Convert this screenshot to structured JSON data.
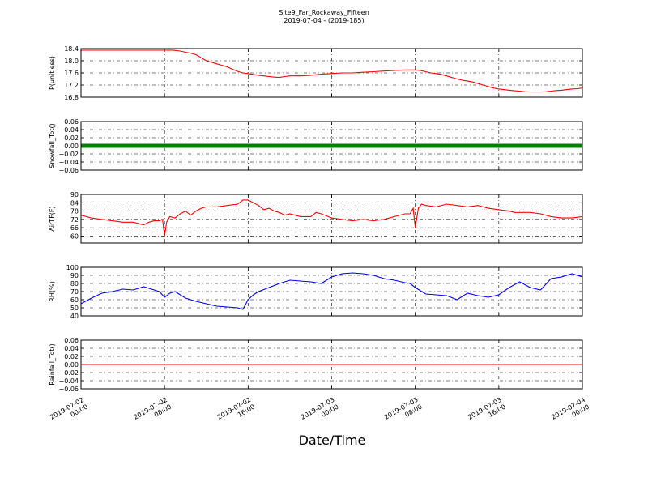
{
  "title": {
    "line1": "Site9_Far_Rockaway_Fifteen",
    "line2": "2019-07-04 - (2019-185)"
  },
  "xlabel": "Date/Time",
  "x_ticks": [
    {
      "line1": "2019-07-02",
      "line2": "00:00",
      "hour": 0
    },
    {
      "line1": "2019-07-02",
      "line2": "08:00",
      "hour": 8
    },
    {
      "line1": "2019-07-02",
      "line2": "16:00",
      "hour": 16
    },
    {
      "line1": "2019-07-03",
      "line2": "00:00",
      "hour": 24
    },
    {
      "line1": "2019-07-03",
      "line2": "08:00",
      "hour": 32
    },
    {
      "line1": "2019-07-03",
      "line2": "16:00",
      "hour": 40
    },
    {
      "line1": "2019-07-04",
      "line2": "00:00",
      "hour": 48
    }
  ],
  "colors": {
    "pressure": "#ff0000",
    "snowfall": "#008000",
    "airtemp": "#ff0000",
    "rh": "#0000ff",
    "rainfall": "#ff0000"
  },
  "chart_data": [
    {
      "type": "line",
      "ylabel": "P(unitless)",
      "ylim": [
        16.8,
        18.4
      ],
      "yticks": [
        "16.8",
        "17.2",
        "17.6",
        "18.0",
        "18.4"
      ],
      "grid": true,
      "x": [
        0,
        2.8,
        8.8,
        9.5,
        10.0,
        10.5,
        11.0,
        11.5,
        12.0,
        12.5,
        13.0,
        13.5,
        14.0,
        14.5,
        15.0,
        15.5,
        16.0,
        16.5,
        17.0,
        17.5,
        18.0,
        18.5,
        19.0,
        19.5,
        20.0,
        21.0,
        22.0,
        23.0,
        24.0,
        25.0,
        26.0,
        27.0,
        28.0,
        29.0,
        30.0,
        31.0,
        32.0,
        32.5,
        33.0,
        33.5,
        34.0,
        34.5,
        35.0,
        35.5,
        36.0,
        36.5,
        37.0,
        37.5,
        38.0,
        38.5,
        39.0,
        39.5,
        40.0,
        40.5,
        41.0,
        41.5,
        42.0,
        42.5,
        43.0,
        43.5,
        44.0,
        44.5,
        45.0,
        45.5,
        46.0,
        46.5,
        47.0,
        47.5,
        48.0
      ],
      "series": [
        {
          "values": [
            18.35,
            18.35,
            18.35,
            18.32,
            18.28,
            18.25,
            18.2,
            18.1,
            18.0,
            17.95,
            17.9,
            17.85,
            17.8,
            17.72,
            17.65,
            17.6,
            17.58,
            17.55,
            17.52,
            17.5,
            17.48,
            17.46,
            17.45,
            17.48,
            17.5,
            17.5,
            17.52,
            17.56,
            17.58,
            17.6,
            17.6,
            17.62,
            17.64,
            17.66,
            17.68,
            17.7,
            17.7,
            17.68,
            17.64,
            17.6,
            17.58,
            17.55,
            17.5,
            17.45,
            17.4,
            17.36,
            17.33,
            17.3,
            17.25,
            17.2,
            17.15,
            17.1,
            17.07,
            17.05,
            17.03,
            17.01,
            17.0,
            16.98,
            16.97,
            16.97,
            16.97,
            16.98,
            17.0,
            17.02,
            17.03,
            17.05,
            17.07,
            17.08,
            17.1
          ]
        }
      ]
    },
    {
      "type": "line",
      "ylabel": "Snowfall_Tot()",
      "ylim": [
        -0.06,
        0.06
      ],
      "yticks": [
        "−0.06",
        "−0.04",
        "−0.02",
        "0.00",
        "0.02",
        "0.04",
        "0.06"
      ],
      "grid": true,
      "x": [
        0,
        48
      ],
      "series": [
        {
          "values": [
            0.0,
            0.0
          ]
        }
      ]
    },
    {
      "type": "line",
      "ylabel": "AirTF(F)",
      "ylim": [
        55,
        90
      ],
      "yticks": [
        "60",
        "66",
        "72",
        "78",
        "84",
        "90"
      ],
      "grid": true,
      "x": [
        0,
        1,
        2,
        3,
        4,
        5,
        6,
        6.5,
        7,
        7.5,
        7.8,
        8.0,
        8.2,
        8.5,
        9,
        9.5,
        10,
        10.5,
        11,
        11.5,
        12,
        13,
        14,
        15,
        15.5,
        16,
        16.5,
        17,
        17.5,
        18,
        18.5,
        19,
        19.5,
        20,
        21,
        22,
        22.5,
        23,
        24,
        25,
        26,
        27,
        28,
        29,
        30,
        31,
        31.5,
        31.8,
        32,
        32.3,
        32.6,
        33,
        34,
        35,
        36,
        37,
        38,
        39,
        40,
        41,
        41.5,
        42,
        43,
        44,
        45,
        46,
        47,
        48
      ],
      "series": [
        {
          "values": [
            75,
            73,
            72,
            71,
            70,
            70,
            68,
            70,
            71,
            71,
            72,
            60,
            70,
            74,
            73,
            76,
            78,
            75,
            78,
            80,
            81,
            81,
            82,
            83,
            86,
            86,
            84,
            82,
            79,
            80,
            78,
            77,
            75,
            76,
            74,
            74,
            77,
            76,
            73,
            72,
            71,
            72,
            71,
            72,
            74,
            76,
            76,
            80,
            66,
            80,
            83,
            82,
            81,
            83,
            82,
            81,
            82,
            80,
            79,
            78,
            77,
            77,
            77,
            76,
            74,
            73,
            73,
            74
          ]
        }
      ]
    },
    {
      "type": "line",
      "ylabel": "RH(%)",
      "ylim": [
        40,
        100
      ],
      "yticks": [
        "40",
        "50",
        "60",
        "70",
        "80",
        "90",
        "100"
      ],
      "grid": true,
      "x": [
        0,
        1,
        2,
        3,
        4,
        5,
        6,
        7,
        7.5,
        8,
        8.5,
        9,
        10,
        11,
        12,
        13,
        14,
        15,
        15.5,
        16,
        16.5,
        17,
        18,
        19,
        20,
        21,
        22,
        23,
        24,
        25,
        26,
        27,
        28,
        29,
        30,
        31,
        31.5,
        32,
        33,
        34,
        35,
        36,
        37,
        38,
        39,
        40,
        41,
        42,
        43,
        44,
        45,
        46,
        47,
        48
      ],
      "series": [
        {
          "values": [
            55,
            62,
            68,
            70,
            73,
            72,
            76,
            72,
            70,
            63,
            68,
            70,
            62,
            58,
            55,
            52,
            51,
            50,
            48,
            60,
            66,
            70,
            75,
            80,
            84,
            83,
            82,
            80,
            88,
            92,
            93,
            92,
            90,
            86,
            84,
            81,
            80,
            75,
            67,
            66,
            65,
            60,
            68,
            65,
            63,
            66,
            75,
            82,
            75,
            72,
            86,
            88,
            92,
            88
          ]
        }
      ]
    },
    {
      "type": "line",
      "ylabel": "Rainfall_Tot()",
      "ylim": [
        -0.06,
        0.06
      ],
      "yticks": [
        "−0.06",
        "−0.04",
        "−0.02",
        "0.00",
        "0.02",
        "0.04",
        "0.06"
      ],
      "grid": true,
      "x": [
        0,
        48
      ],
      "series": [
        {
          "values": [
            0.0,
            0.0
          ]
        }
      ]
    }
  ]
}
